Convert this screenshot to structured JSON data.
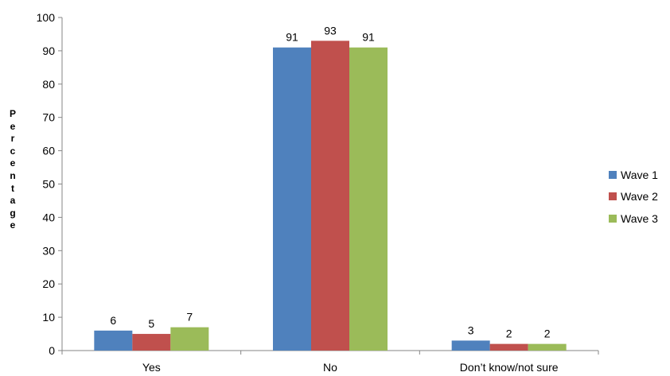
{
  "chart_data": {
    "type": "bar",
    "categories": [
      "Yes",
      "No",
      "Don’t know/not sure"
    ],
    "series": [
      {
        "name": "Wave 1",
        "values": [
          6,
          91,
          3
        ],
        "color": "#4f81bd"
      },
      {
        "name": "Wave 2",
        "values": [
          5,
          93,
          2
        ],
        "color": "#c0504d"
      },
      {
        "name": "Wave 3",
        "values": [
          7,
          91,
          2
        ],
        "color": "#9bbb59"
      }
    ],
    "title": "",
    "xlabel": "",
    "ylabel": "Percentage",
    "ylim": [
      0,
      100
    ],
    "yticks": [
      0,
      10,
      20,
      30,
      40,
      50,
      60,
      70,
      80,
      90,
      100
    ],
    "grid": false,
    "legend_position": "right"
  }
}
